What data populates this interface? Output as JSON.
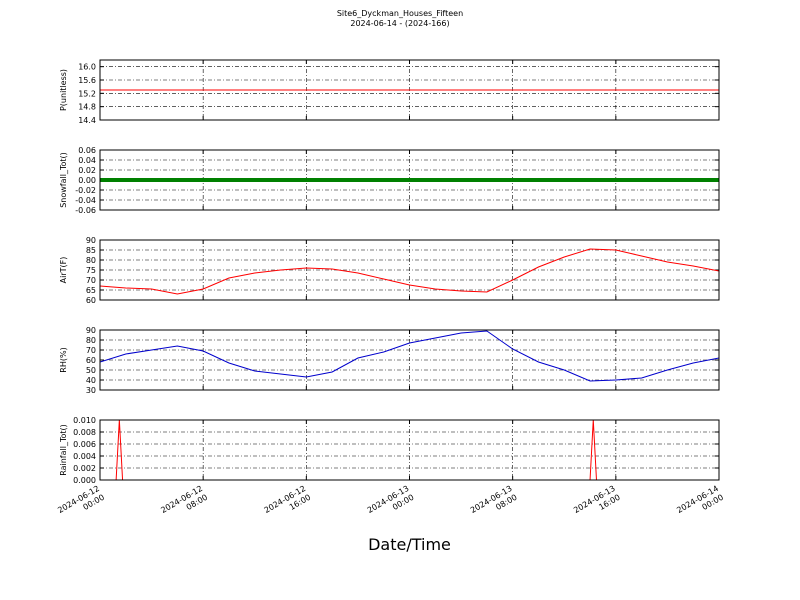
{
  "title": "Site6_Dyckman_Houses_Fifteen",
  "subtitle": "2024-06-14 - (2024-166)",
  "chart_data": [
    {
      "type": "line",
      "ylabel": "P(unitless)",
      "ylim": [
        14.4,
        16.2
      ],
      "yticks": [
        14.4,
        14.8,
        15.2,
        15.6,
        {
          "value": 16,
          "label": "16.0"
        }
      ],
      "xlim": [
        "2024-06-12 00:00",
        "2024-06-14 00:00"
      ],
      "xticks": [
        "2024-06-12 00:00",
        "2024-06-12 08:00",
        "2024-06-12 16:00",
        "2024-06-13 00:00",
        "2024-06-13 08:00",
        "2024-06-13 16:00",
        "2024-06-14 00:00"
      ],
      "grid": true,
      "x": [
        "2024-06-12 00:00",
        "2024-06-14 00:00"
      ],
      "series": [
        {
          "color": "#ff0000",
          "values": [
            15.3,
            15.3
          ]
        }
      ]
    },
    {
      "type": "line",
      "ylabel": "Snowfall_Tot()",
      "ylim": [
        -0.06,
        0.06
      ],
      "yticks": [
        -0.06,
        -0.04,
        -0.02,
        {
          "value": 0,
          "label": "0.00"
        },
        0.02,
        0.04,
        0.06
      ],
      "xlim": [
        "2024-06-12 00:00",
        "2024-06-14 00:00"
      ],
      "xticks": [
        "2024-06-12 00:00",
        "2024-06-12 08:00",
        "2024-06-12 16:00",
        "2024-06-13 00:00",
        "2024-06-13 08:00",
        "2024-06-13 16:00",
        "2024-06-14 00:00"
      ],
      "grid": true,
      "x": [
        "2024-06-12 00:00",
        "2024-06-14 00:00"
      ],
      "series": [
        {
          "color": "#008000",
          "values": [
            0,
            0
          ]
        }
      ]
    },
    {
      "type": "line",
      "ylabel": "AirT(F)",
      "ylim": [
        60,
        90
      ],
      "yticks": [
        60,
        65,
        70,
        75,
        80,
        85,
        90
      ],
      "xlim": [
        "2024-06-12 00:00",
        "2024-06-14 00:00"
      ],
      "xticks": [
        "2024-06-12 00:00",
        "2024-06-12 08:00",
        "2024-06-12 16:00",
        "2024-06-13 00:00",
        "2024-06-13 08:00",
        "2024-06-13 16:00",
        "2024-06-14 00:00"
      ],
      "grid": true,
      "x": [
        "2024-06-12 00:00",
        "2024-06-12 02:00",
        "2024-06-12 04:00",
        "2024-06-12 06:00",
        "2024-06-12 08:00",
        "2024-06-12 10:00",
        "2024-06-12 12:00",
        "2024-06-12 14:00",
        "2024-06-12 16:00",
        "2024-06-12 18:00",
        "2024-06-12 20:00",
        "2024-06-12 22:00",
        "2024-06-13 00:00",
        "2024-06-13 02:00",
        "2024-06-13 04:00",
        "2024-06-13 06:00",
        "2024-06-13 08:00",
        "2024-06-13 10:00",
        "2024-06-13 12:00",
        "2024-06-13 14:00",
        "2024-06-13 16:00",
        "2024-06-13 18:00",
        "2024-06-13 20:00",
        "2024-06-13 22:00",
        "2024-06-14 00:00"
      ],
      "series": [
        {
          "color": "#ff0000",
          "values": [
            67,
            66,
            65.5,
            63,
            65.5,
            71,
            73.5,
            75,
            76,
            75.5,
            73.5,
            70.5,
            67.5,
            65.5,
            64.5,
            64,
            70,
            76.5,
            81.5,
            85.5,
            85,
            82,
            79,
            77,
            74.5
          ]
        }
      ]
    },
    {
      "type": "line",
      "ylabel": "RH(%)",
      "ylim": [
        30,
        90
      ],
      "yticks": [
        30,
        40,
        50,
        60,
        70,
        80,
        90
      ],
      "xlim": [
        "2024-06-12 00:00",
        "2024-06-14 00:00"
      ],
      "xticks": [
        "2024-06-12 00:00",
        "2024-06-12 08:00",
        "2024-06-12 16:00",
        "2024-06-13 00:00",
        "2024-06-13 08:00",
        "2024-06-13 16:00",
        "2024-06-14 00:00"
      ],
      "grid": true,
      "x": [
        "2024-06-12 00:00",
        "2024-06-12 02:00",
        "2024-06-12 04:00",
        "2024-06-12 06:00",
        "2024-06-12 08:00",
        "2024-06-12 10:00",
        "2024-06-12 12:00",
        "2024-06-12 14:00",
        "2024-06-12 16:00",
        "2024-06-12 18:00",
        "2024-06-12 20:00",
        "2024-06-12 22:00",
        "2024-06-13 00:00",
        "2024-06-13 02:00",
        "2024-06-13 04:00",
        "2024-06-13 06:00",
        "2024-06-13 08:00",
        "2024-06-13 10:00",
        "2024-06-13 12:00",
        "2024-06-13 14:00",
        "2024-06-13 16:00",
        "2024-06-13 18:00",
        "2024-06-13 20:00",
        "2024-06-13 22:00",
        "2024-06-14 00:00"
      ],
      "series": [
        {
          "color": "#0000cc",
          "values": [
            58,
            66,
            70,
            74,
            69,
            57,
            49,
            46,
            43,
            48,
            62,
            68,
            77,
            82,
            87,
            89,
            71,
            58,
            50,
            39,
            40,
            42,
            50,
            57,
            62
          ]
        }
      ]
    },
    {
      "type": "line",
      "ylabel": "Rainfall_Tot()",
      "xlabel": "Date/Time",
      "ylim": [
        0,
        0.01
      ],
      "yticks": [
        {
          "value": 0,
          "label": "0.000"
        },
        0.002,
        0.004,
        0.006,
        0.008,
        {
          "value": 0.01,
          "label": "0.010"
        }
      ],
      "xlim": [
        "2024-06-12 00:00",
        "2024-06-14 00:00"
      ],
      "xticks": [
        "2024-06-12 00:00",
        "2024-06-12 08:00",
        "2024-06-12 16:00",
        "2024-06-13 00:00",
        "2024-06-13 08:00",
        "2024-06-13 16:00",
        "2024-06-14 00:00"
      ],
      "grid": true,
      "x": [
        "2024-06-12 00:00",
        "2024-06-12 01:15",
        "2024-06-12 01:30",
        "2024-06-12 01:45",
        "2024-06-13 14:00",
        "2024-06-13 14:15",
        "2024-06-13 14:30",
        "2024-06-14 00:00"
      ],
      "series": [
        {
          "color": "#ff0000",
          "values": [
            0,
            0,
            0.01,
            0,
            0,
            0.01,
            0,
            0
          ]
        }
      ]
    }
  ]
}
